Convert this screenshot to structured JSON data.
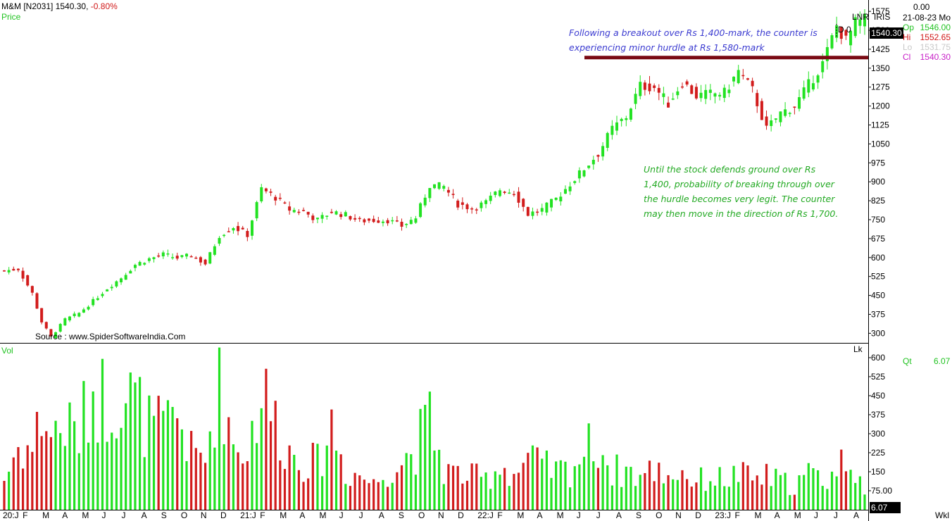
{
  "header": {
    "symbol": "M&M [N2031]",
    "last": "1540.30,",
    "change": "-0.80%",
    "price_label": "Price",
    "vol_label": "Vol",
    "lnr": "LNR",
    "iris": "IRIS",
    "d_marker": "D 0",
    "lk": "Lk",
    "wkl": "Wkl",
    "right_top": "0.00",
    "date": "21-08-23 Mo",
    "price_tag": "1540.30",
    "vol_tag": "6.07",
    "qt_label": "Qt",
    "qt_value": "6.07"
  },
  "ohlc": [
    {
      "k": "Op",
      "v": "1546.00",
      "color": "#22c322"
    },
    {
      "k": "Hi",
      "v": "1552.65",
      "color": "#d01818"
    },
    {
      "k": "Lo",
      "v": "1531.75",
      "color": "#c8c8c8"
    },
    {
      "k": "Cl",
      "v": "1540.30",
      "color": "#c820c8"
    }
  ],
  "notes": {
    "blue": [
      "Following a breakout over Rs 1,400-mark, the counter is",
      "experiencing minor hurdle at Rs 1,580-mark"
    ],
    "green": [
      "Until the stock defends ground over Rs",
      "1,400, probability of breaking through over",
      "the hurdle becomes very legit. The counter",
      "may then move in the direction of Rs 1,700."
    ],
    "source": "Source : www.SpiderSoftwareIndia.Com"
  },
  "chart_data": {
    "type": "candlestick",
    "timeframe": "weekly",
    "price_axis": {
      "ticks": [
        300,
        375,
        450,
        525,
        600,
        675,
        750,
        825,
        900,
        975,
        1050,
        1125,
        1200,
        1275,
        1350,
        1425,
        1500,
        1575
      ],
      "range": [
        262,
        1620
      ]
    },
    "volume_axis": {
      "ticks": [
        75,
        150,
        225,
        300,
        375,
        450,
        525,
        600
      ],
      "tick_labels": [
        "75.00",
        "150",
        "225",
        "300",
        "375",
        "450",
        "525",
        "600"
      ],
      "range": [
        0,
        650
      ]
    },
    "x_labels": [
      "20:J",
      "F",
      "M",
      "A",
      "M",
      "J",
      "J",
      "A",
      "S",
      "O",
      "N",
      "D",
      "21:J",
      "F",
      "M",
      "A",
      "M",
      "J",
      "J",
      "A",
      "S",
      "O",
      "N",
      "D",
      "22:J",
      "F",
      "M",
      "A",
      "M",
      "J",
      "J",
      "A",
      "S",
      "O",
      "N",
      "D",
      "23:J",
      "F",
      "M",
      "A",
      "M",
      "J",
      "J",
      "A"
    ],
    "resistance_level": 1392,
    "close_anchors": [
      [
        0,
        548
      ],
      [
        3,
        555
      ],
      [
        6,
        458
      ],
      [
        8,
        345
      ],
      [
        10,
        285
      ],
      [
        13,
        355
      ],
      [
        16,
        380
      ],
      [
        19,
        428
      ],
      [
        22,
        478
      ],
      [
        25,
        520
      ],
      [
        28,
        572
      ],
      [
        31,
        595
      ],
      [
        34,
        612
      ],
      [
        37,
        598
      ],
      [
        40,
        608
      ],
      [
        43,
        575
      ],
      [
        46,
        688
      ],
      [
        49,
        722
      ],
      [
        52,
        690
      ],
      [
        55,
        872
      ],
      [
        58,
        838
      ],
      [
        61,
        790
      ],
      [
        64,
        782
      ],
      [
        67,
        748
      ],
      [
        70,
        782
      ],
      [
        73,
        768
      ],
      [
        76,
        745
      ],
      [
        79,
        748
      ],
      [
        82,
        748
      ],
      [
        85,
        725
      ],
      [
        88,
        758
      ],
      [
        91,
        888
      ],
      [
        94,
        880
      ],
      [
        97,
        812
      ],
      [
        100,
        795
      ],
      [
        103,
        818
      ],
      [
        106,
        870
      ],
      [
        109,
        858
      ],
      [
        112,
        772
      ],
      [
        115,
        790
      ],
      [
        118,
        832
      ],
      [
        121,
        892
      ],
      [
        124,
        952
      ],
      [
        127,
        1012
      ],
      [
        130,
        1110
      ],
      [
        133,
        1158
      ],
      [
        136,
        1280
      ],
      [
        139,
        1275
      ],
      [
        142,
        1210
      ],
      [
        145,
        1296
      ],
      [
        148,
        1240
      ],
      [
        151,
        1248
      ],
      [
        154,
        1252
      ],
      [
        157,
        1338
      ],
      [
        160,
        1262
      ],
      [
        163,
        1108
      ],
      [
        166,
        1172
      ],
      [
        169,
        1200
      ],
      [
        172,
        1284
      ],
      [
        175,
        1368
      ],
      [
        178,
        1518
      ],
      [
        180,
        1458
      ],
      [
        182,
        1528
      ],
      [
        184,
        1540
      ]
    ],
    "volume_anchors": [
      [
        0,
        120
      ],
      [
        3,
        250
      ],
      [
        6,
        240
      ],
      [
        8,
        380
      ],
      [
        10,
        300
      ],
      [
        13,
        330
      ],
      [
        16,
        300
      ],
      [
        19,
        480
      ],
      [
        22,
        430
      ],
      [
        25,
        480
      ],
      [
        28,
        420
      ],
      [
        31,
        330
      ],
      [
        34,
        310
      ],
      [
        37,
        380
      ],
      [
        40,
        220
      ],
      [
        43,
        200
      ],
      [
        46,
        540
      ],
      [
        49,
        260
      ],
      [
        52,
        240
      ],
      [
        55,
        470
      ],
      [
        58,
        350
      ],
      [
        61,
        230
      ],
      [
        64,
        200
      ],
      [
        67,
        180
      ],
      [
        70,
        340
      ],
      [
        73,
        150
      ],
      [
        76,
        140
      ],
      [
        79,
        100
      ],
      [
        82,
        160
      ],
      [
        85,
        190
      ],
      [
        88,
        250
      ],
      [
        91,
        350
      ],
      [
        94,
        160
      ],
      [
        97,
        140
      ],
      [
        100,
        130
      ],
      [
        103,
        120
      ],
      [
        106,
        180
      ],
      [
        109,
        140
      ],
      [
        112,
        200
      ],
      [
        115,
        170
      ],
      [
        118,
        150
      ],
      [
        121,
        160
      ],
      [
        124,
        230
      ],
      [
        127,
        270
      ],
      [
        130,
        150
      ],
      [
        133,
        160
      ],
      [
        136,
        130
      ],
      [
        139,
        160
      ],
      [
        142,
        140
      ],
      [
        145,
        150
      ],
      [
        148,
        110
      ],
      [
        151,
        130
      ],
      [
        154,
        120
      ],
      [
        157,
        140
      ],
      [
        160,
        120
      ],
      [
        163,
        130
      ],
      [
        166,
        110
      ],
      [
        169,
        100
      ],
      [
        172,
        140
      ],
      [
        175,
        120
      ],
      [
        178,
        150
      ],
      [
        180,
        220
      ],
      [
        182,
        190
      ],
      [
        184,
        60
      ]
    ]
  }
}
